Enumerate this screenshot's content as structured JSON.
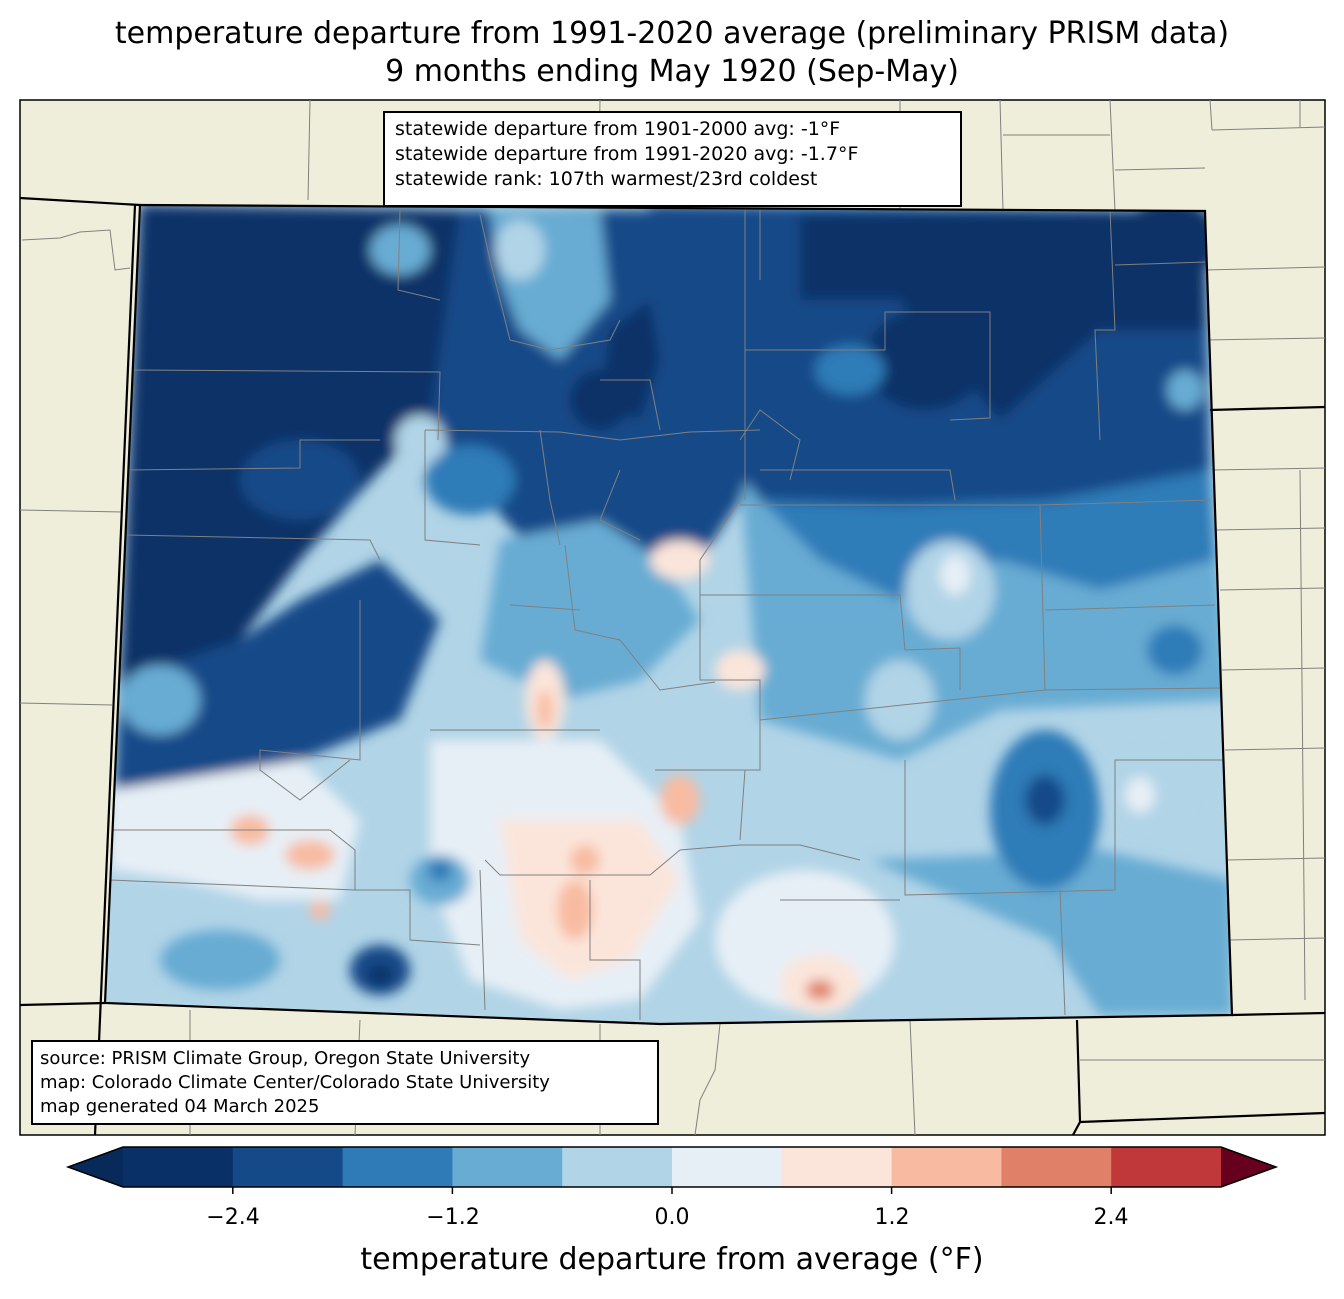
{
  "title": {
    "line1": "temperature departure from 1991-2020 average (preliminary PRISM data)",
    "line2": "9 months ending May 1920 (Sep-May)"
  },
  "stats": {
    "line1": "statewide departure from 1901-2000 avg: -1°F",
    "line2": "statewide departure from 1991-2020 avg: -1.7°F",
    "line3": "statewide rank: 107th warmest/23rd coldest"
  },
  "credits": {
    "source": "source: PRISM Climate Group, Oregon State University",
    "map": "map: Colorado Climate Center/Colorado State University",
    "generated": "map generated 04 March 2025"
  },
  "colorbar": {
    "label": "temperature departure from average (°F)",
    "ticks": [
      "−2.4",
      "−1.2",
      "0.0",
      "1.2",
      "2.4"
    ],
    "bins": [
      -3.0,
      -2.4,
      -1.8,
      -1.2,
      -0.6,
      0.0,
      0.6,
      1.2,
      1.8,
      2.4,
      3.0
    ],
    "colors": [
      "#0a3068",
      "#144a88",
      "#2f7bb8",
      "#68acd3",
      "#b1d4e7",
      "#e7eff6",
      "#fbe5da",
      "#f8bba1",
      "#e08068",
      "#c0383a",
      "#880b26"
    ],
    "under_color": "#072a5a",
    "over_color": "#67001f"
  },
  "map": {
    "land_color": "#efeedb",
    "state_fill_base": "#b1d4e7"
  }
}
